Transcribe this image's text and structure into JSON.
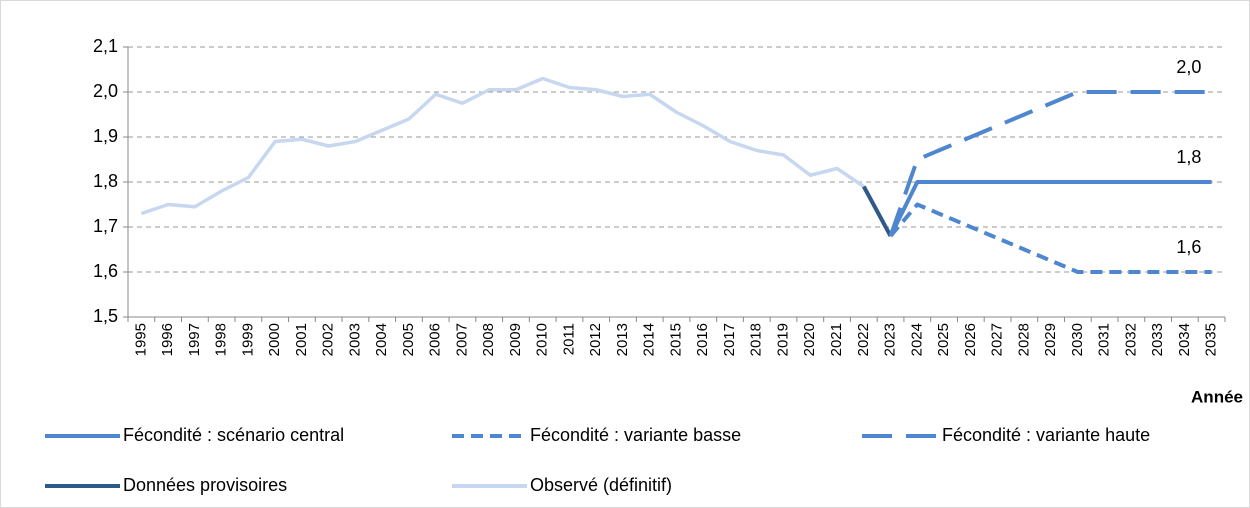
{
  "chart_data": {
    "type": "line",
    "x_label": "Année",
    "categories": [
      "1995",
      "1996",
      "1997",
      "1998",
      "1999",
      "2000",
      "2001",
      "2002",
      "2003",
      "2004",
      "2005",
      "2006",
      "2007",
      "2008",
      "2009",
      "2010",
      "2011",
      "2012",
      "2013",
      "2014",
      "2015",
      "2016",
      "2017",
      "2018",
      "2019",
      "2020",
      "2021",
      "2022",
      "2023",
      "2024",
      "2025",
      "2026",
      "2027",
      "2028",
      "2029",
      "2030",
      "2031",
      "2032",
      "2033",
      "2034",
      "2035"
    ],
    "ylim": [
      1.5,
      2.1
    ],
    "yticks": [
      {
        "value": 1.5,
        "label": "1,5"
      },
      {
        "value": 1.6,
        "label": "1,6"
      },
      {
        "value": 1.7,
        "label": "1,7"
      },
      {
        "value": 1.8,
        "label": "1,8"
      },
      {
        "value": 1.9,
        "label": "1,9"
      },
      {
        "value": 2.0,
        "label": "2,0"
      },
      {
        "value": 2.1,
        "label": "2,1"
      }
    ],
    "grid": true,
    "series": [
      {
        "name": "Fécondité : scénario central",
        "color": "#4f86d0",
        "dash": "solid",
        "values": [
          null,
          null,
          null,
          null,
          null,
          null,
          null,
          null,
          null,
          null,
          null,
          null,
          null,
          null,
          null,
          null,
          null,
          null,
          null,
          null,
          null,
          null,
          null,
          null,
          null,
          null,
          null,
          null,
          1.68,
          1.8,
          1.8,
          1.8,
          1.8,
          1.8,
          1.8,
          1.8,
          1.8,
          1.8,
          1.8,
          1.8,
          1.8
        ],
        "value_labels": [
          null,
          null,
          null,
          null,
          null,
          null,
          null,
          null,
          null,
          null,
          null,
          null,
          null,
          null,
          null,
          null,
          null,
          null,
          null,
          null,
          null,
          null,
          null,
          null,
          null,
          null,
          null,
          null,
          null,
          null,
          null,
          null,
          null,
          null,
          null,
          null,
          null,
          null,
          null,
          "1,8",
          null
        ]
      },
      {
        "name": "Fécondité : variante basse",
        "color": "#4f86d0",
        "dash": "short",
        "values": [
          null,
          null,
          null,
          null,
          null,
          null,
          null,
          null,
          null,
          null,
          null,
          null,
          null,
          null,
          null,
          null,
          null,
          null,
          null,
          null,
          null,
          null,
          null,
          null,
          null,
          null,
          null,
          null,
          1.68,
          1.75,
          1.725,
          1.7,
          1.675,
          1.65,
          1.625,
          1.6,
          1.6,
          1.6,
          1.6,
          1.6,
          1.6
        ],
        "value_labels": [
          null,
          null,
          null,
          null,
          null,
          null,
          null,
          null,
          null,
          null,
          null,
          null,
          null,
          null,
          null,
          null,
          null,
          null,
          null,
          null,
          null,
          null,
          null,
          null,
          null,
          null,
          null,
          null,
          null,
          null,
          null,
          null,
          null,
          null,
          null,
          null,
          null,
          null,
          null,
          "1,6",
          null
        ]
      },
      {
        "name": "Fécondité : variante haute",
        "color": "#4f86d0",
        "dash": "long",
        "values": [
          null,
          null,
          null,
          null,
          null,
          null,
          null,
          null,
          null,
          null,
          null,
          null,
          null,
          null,
          null,
          null,
          null,
          null,
          null,
          null,
          null,
          null,
          null,
          null,
          null,
          null,
          null,
          null,
          1.68,
          1.85,
          1.875,
          1.9,
          1.925,
          1.95,
          1.975,
          2.0,
          2.0,
          2.0,
          2.0,
          2.0,
          2.0
        ],
        "value_labels": [
          null,
          null,
          null,
          null,
          null,
          null,
          null,
          null,
          null,
          null,
          null,
          null,
          null,
          null,
          null,
          null,
          null,
          null,
          null,
          null,
          null,
          null,
          null,
          null,
          null,
          null,
          null,
          null,
          null,
          null,
          null,
          null,
          null,
          null,
          null,
          null,
          null,
          null,
          null,
          "2,0",
          null
        ]
      },
      {
        "name": "Données provisoires",
        "color": "#2e5a8a",
        "dash": "solid",
        "values": [
          null,
          null,
          null,
          null,
          null,
          null,
          null,
          null,
          null,
          null,
          null,
          null,
          null,
          null,
          null,
          null,
          null,
          null,
          null,
          null,
          null,
          null,
          null,
          null,
          null,
          null,
          null,
          1.79,
          1.68,
          null,
          null,
          null,
          null,
          null,
          null,
          null,
          null,
          null,
          null,
          null,
          null
        ]
      },
      {
        "name": "Observé (définitif)",
        "color": "#c6d7ef",
        "dash": "solid",
        "values": [
          1.73,
          1.75,
          1.745,
          1.78,
          1.81,
          1.89,
          1.895,
          1.88,
          1.89,
          1.915,
          1.94,
          1.995,
          1.975,
          2.005,
          2.005,
          2.03,
          2.01,
          2.005,
          1.99,
          1.995,
          1.955,
          1.925,
          1.89,
          1.87,
          1.86,
          1.815,
          1.83,
          1.79,
          null,
          null,
          null,
          null,
          null,
          null,
          null,
          null,
          null,
          null,
          null,
          null,
          null
        ]
      }
    ]
  }
}
